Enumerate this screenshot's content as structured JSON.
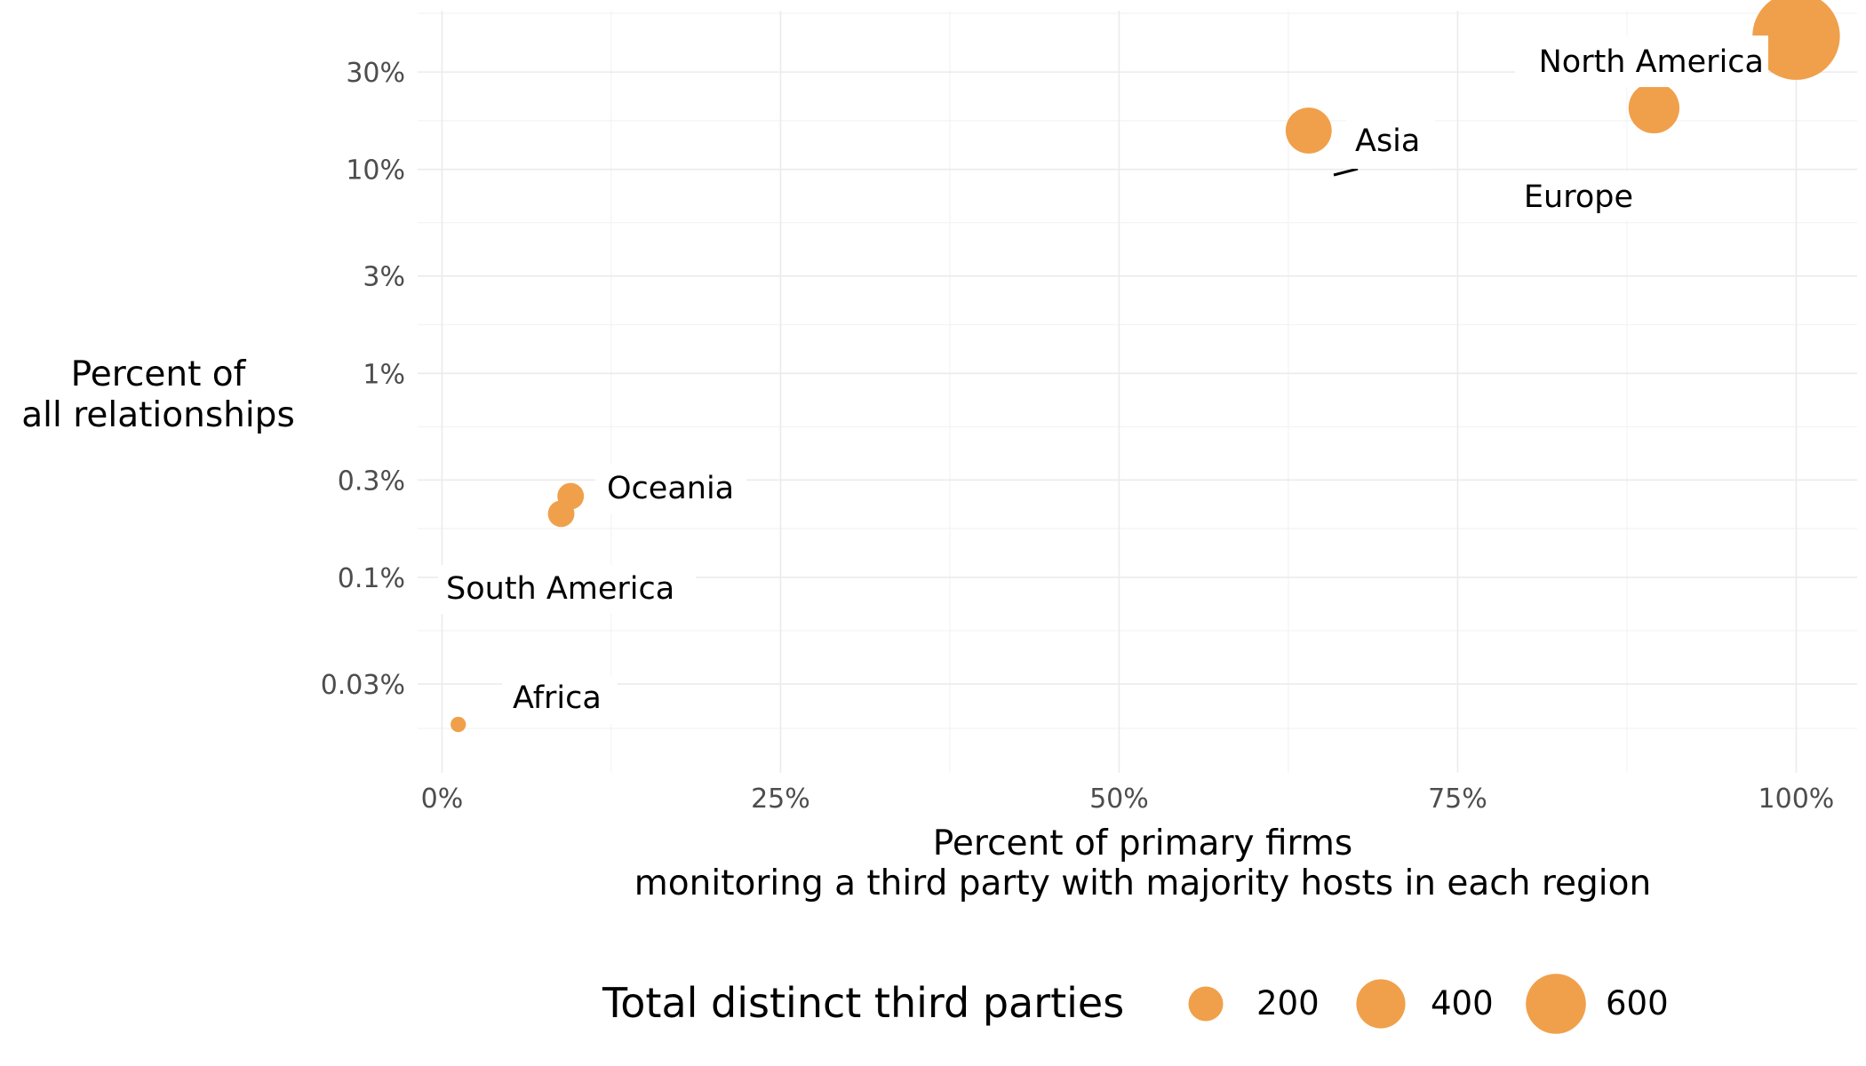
{
  "chart_data": {
    "type": "scatter",
    "x_axis": {
      "label_line1": "Percent of primary firms",
      "label_line2": "monitoring a third party with majority hosts in each region",
      "ticks": [
        {
          "value": 0,
          "label": "0%"
        },
        {
          "value": 25,
          "label": "25%"
        },
        {
          "value": 50,
          "label": "50%"
        },
        {
          "value": 75,
          "label": "75%"
        },
        {
          "value": 100,
          "label": "100%"
        }
      ],
      "range": [
        -1.8,
        104.5
      ]
    },
    "y_axis": {
      "scale": "log10",
      "label_line1": "Percent of",
      "label_line2": "all relationships",
      "ticks": [
        {
          "value": 0.03,
          "label": "0.03%"
        },
        {
          "value": 0.1,
          "label": "0.1%"
        },
        {
          "value": 0.3,
          "label": "0.3%"
        },
        {
          "value": 1,
          "label": "1%"
        },
        {
          "value": 3,
          "label": "3%"
        },
        {
          "value": 10,
          "label": "10%"
        },
        {
          "value": 30,
          "label": "30%"
        }
      ],
      "range": [
        0.011,
        60
      ]
    },
    "color": "#f0a04b",
    "points": [
      {
        "name": "North America",
        "x": 100,
        "y": 45,
        "size": 650
      },
      {
        "name": "Europe",
        "x": 89.5,
        "y": 20,
        "size": 220
      },
      {
        "name": "Asia",
        "x": 64,
        "y": 15.5,
        "size": 180
      },
      {
        "name": "Oceania",
        "x": 9.5,
        "y": 0.25,
        "size": 60
      },
      {
        "name": "South America",
        "x": 8.8,
        "y": 0.205,
        "size": 60
      },
      {
        "name": "Africa",
        "x": 1.2,
        "y": 0.019,
        "size": 20
      }
    ],
    "legend": {
      "title": "Total distinct third parties",
      "items": [
        {
          "label": "200",
          "size": 200
        },
        {
          "label": "400",
          "size": 400
        },
        {
          "label": "600",
          "size": 600
        }
      ]
    }
  }
}
